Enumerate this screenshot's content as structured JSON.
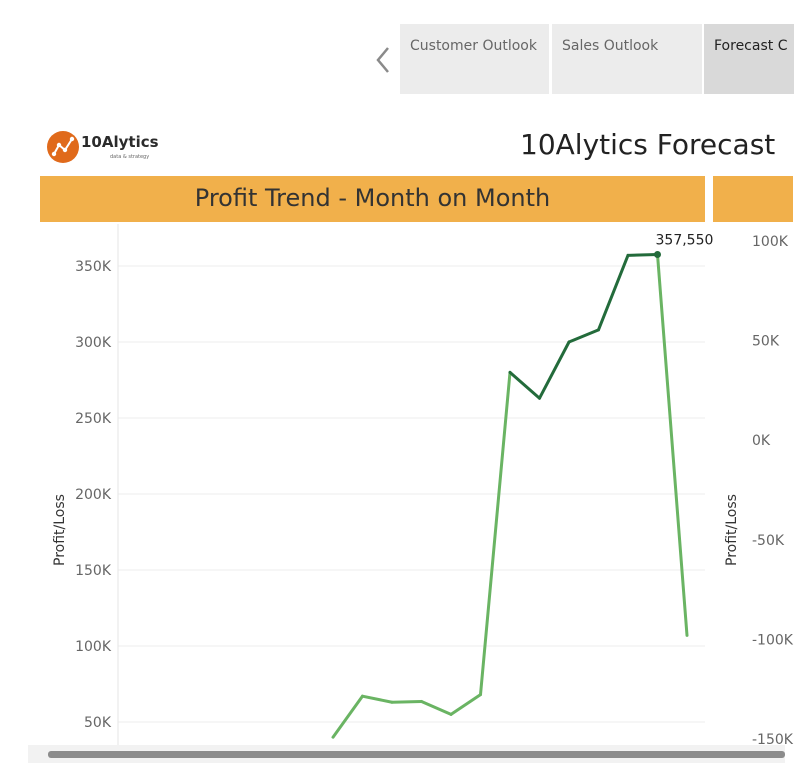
{
  "tabs": [
    {
      "label": "Customer Outlook",
      "active": false
    },
    {
      "label": "Sales Outlook",
      "active": false
    },
    {
      "label": "Forecast C",
      "active": true
    }
  ],
  "prev_icon": "chevron-left-icon",
  "logo": {
    "name": "10Alytics",
    "tagline": "data & strategy",
    "color": "#e06a1b"
  },
  "dashboard_title": "10Alytics Forecast",
  "left_panel": {
    "header": "Profit Trend - Month on Month",
    "ylabel": "Profit/Loss"
  },
  "right_panel": {
    "header": "",
    "ylabel": "Profit/Loss"
  },
  "colors": {
    "header_bg": "#f1b04b",
    "line_light": "#6ab463",
    "line_dark": "#236b3b"
  },
  "chart_data": [
    {
      "type": "line",
      "title": "Profit Trend - Month on Month",
      "xlabel": "",
      "ylabel": "Profit/Loss",
      "ylim": [
        40000,
        375000
      ],
      "yticks": [
        50000,
        100000,
        150000,
        200000,
        250000,
        300000,
        350000
      ],
      "ytick_labels": [
        "50K",
        "100K",
        "150K",
        "200K",
        "250K",
        "300K",
        "350K"
      ],
      "x": [
        1,
        2,
        3,
        4,
        5,
        6,
        7,
        8,
        9,
        10,
        11,
        12,
        13
      ],
      "values": [
        40000,
        67000,
        63000,
        63500,
        55000,
        68000,
        280000,
        263000,
        300000,
        308000,
        357000,
        357550,
        107000
      ],
      "annotation": {
        "x": 12,
        "y": 357550,
        "label": "357,550"
      },
      "grid": true
    },
    {
      "type": "line",
      "title": "",
      "xlabel": "",
      "ylabel": "Profit/Loss",
      "yticks": [
        100000,
        50000,
        0,
        -50000,
        -100000,
        -150000
      ],
      "ytick_labels": [
        "100K",
        "50K",
        "0K",
        "-50K",
        "-100K",
        "-150K"
      ],
      "values": []
    }
  ]
}
